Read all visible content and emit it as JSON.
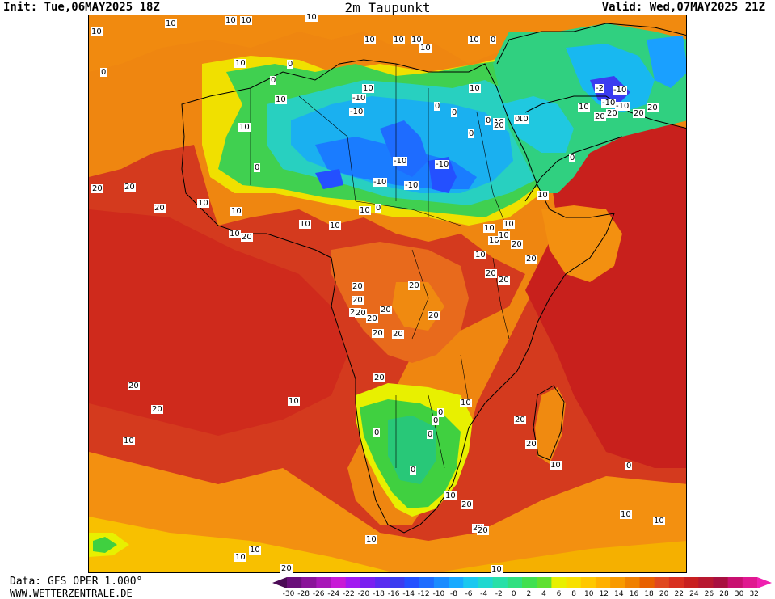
{
  "header": {
    "init": "Init: Tue,06MAY2025 18Z",
    "title": "2m Taupunkt",
    "valid": "Valid: Wed,07MAY2025 21Z"
  },
  "footer": {
    "data_source": "Data: GFS OPER 1.000°",
    "website": "WWW.WETTERZENTRALE.DE"
  },
  "legend": {
    "ticks": [
      "-30",
      "-28",
      "-26",
      "-24",
      "-22",
      "-20",
      "-18",
      "-16",
      "-14",
      "-12",
      "-10",
      "-8",
      "-6",
      "-4",
      "-2",
      "0",
      "2",
      "4",
      "6",
      "8",
      "10",
      "12",
      "14",
      "16",
      "18",
      "20",
      "22",
      "24",
      "26",
      "28",
      "30",
      "32"
    ],
    "colors": [
      "#4b0b56",
      "#6a0f7a",
      "#8a1399",
      "#a817b8",
      "#c81bd6",
      "#a21bf0",
      "#7a20f0",
      "#5a2cf0",
      "#3b3cf0",
      "#2450ff",
      "#1e6cff",
      "#1a8cff",
      "#18aaff",
      "#1ac8f0",
      "#20d8d0",
      "#28e0a8",
      "#30e080",
      "#40e050",
      "#60e030",
      "#e8f000",
      "#f8e000",
      "#ffc800",
      "#ffb000",
      "#f89a00",
      "#f08000",
      "#e86000",
      "#e04820",
      "#d83020",
      "#c82020",
      "#b81830",
      "#a81040",
      "#c81070",
      "#e01890",
      "#f020b0"
    ]
  },
  "map": {
    "labels": [
      "10",
      "10",
      "10",
      "10",
      "10",
      "10",
      "10",
      "10",
      "10",
      "0",
      "10",
      "0",
      "0",
      "10",
      "10",
      "10",
      "10",
      "0",
      "0",
      "-10",
      "10",
      "0",
      "0",
      "10",
      "10",
      "-2",
      "-10",
      "10",
      "-10",
      "20",
      "-10",
      "20",
      "20",
      "20",
      "-10",
      "-10",
      "0",
      "20",
      "0",
      "0",
      "10",
      "-10",
      "-10",
      "10",
      "0",
      "-10",
      "10",
      "20",
      "20",
      "10",
      "20",
      "0",
      "10",
      "10",
      "10",
      "20",
      "10",
      "10",
      "10",
      "10",
      "20",
      "20",
      "10",
      "20",
      "20",
      "20",
      "20",
      "20",
      "20",
      "20",
      "20",
      "20",
      "20",
      "20",
      "20",
      "20",
      "20",
      "10",
      "10",
      "20",
      "0",
      "0",
      "0",
      "0",
      "0",
      "10",
      "20",
      "20",
      "10",
      "10",
      "10",
      "10",
      "10",
      "10",
      "20",
      "10",
      "20",
      "20",
      "0",
      "20",
      "10"
    ]
  }
}
